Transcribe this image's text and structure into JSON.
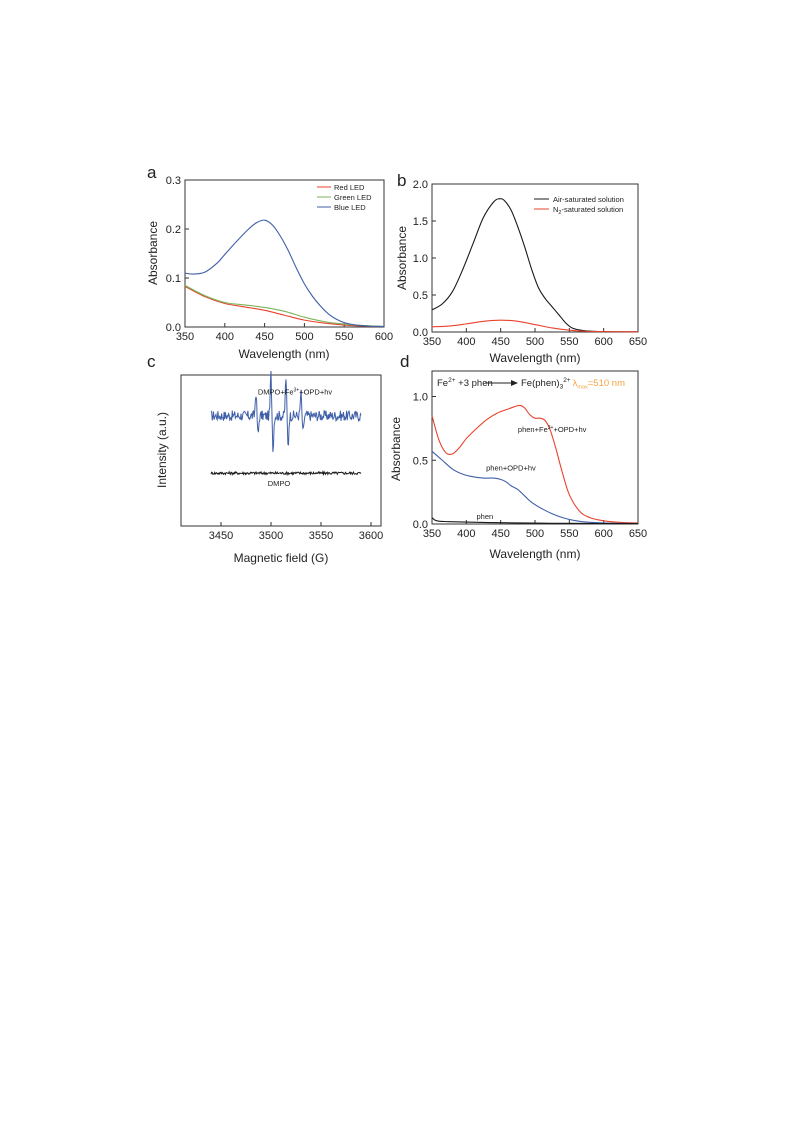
{
  "colors": {
    "red": "#e8432d",
    "green": "#7ab55c",
    "blue": "#3f5fa8",
    "black": "#1a1a1a",
    "orange": "#f2a341"
  },
  "panels": {
    "a": {
      "letter": "a"
    },
    "b": {
      "letter": "b"
    },
    "c": {
      "letter": "c"
    },
    "d": {
      "letter": "d",
      "eq_left": "Fe",
      "eq_left_sup": "2+",
      "eq_mid": " +3 phen",
      "eq_right": "Fe(phen)",
      "eq_right_sub": "3",
      "eq_right_sup": "2+",
      "eq_lambda": "λ",
      "eq_lambda_sub": "max",
      "eq_lambda_val": "=510 nm"
    }
  },
  "chart_data": [
    {
      "panel": "a",
      "type": "line",
      "xlabel": "Wavelength (nm)",
      "ylabel": "Absorbance",
      "xlim": [
        350,
        600
      ],
      "ylim": [
        0,
        0.3
      ],
      "xticks": [
        350,
        400,
        450,
        500,
        550,
        600
      ],
      "yticks": [
        0.0,
        0.1,
        0.2,
        0.3
      ],
      "xtick_labels": [
        "350",
        "400",
        "450",
        "500",
        "550",
        "600"
      ],
      "ytick_labels": [
        "0.0",
        "0.1",
        "0.2",
        "0.3"
      ],
      "legend_position": "top-right",
      "series": [
        {
          "name": "Red LED",
          "color": "#e8432d",
          "x": [
            350,
            375,
            400,
            425,
            450,
            475,
            500,
            525,
            550,
            575,
            600
          ],
          "y": [
            0.083,
            0.062,
            0.048,
            0.041,
            0.034,
            0.024,
            0.014,
            0.008,
            0.004,
            0.002,
            0.001
          ]
        },
        {
          "name": "Green LED",
          "color": "#7ab55c",
          "x": [
            350,
            375,
            400,
            425,
            450,
            475,
            500,
            525,
            550,
            575,
            600
          ],
          "y": [
            0.085,
            0.064,
            0.05,
            0.045,
            0.04,
            0.032,
            0.02,
            0.011,
            0.006,
            0.003,
            0.001
          ]
        },
        {
          "name": "Blue LED",
          "color": "#3f5fa8",
          "x": [
            350,
            360,
            375,
            390,
            400,
            415,
            430,
            440,
            450,
            460,
            470,
            480,
            490,
            500,
            510,
            520,
            530,
            540,
            550,
            565,
            580,
            600
          ],
          "y": [
            0.11,
            0.108,
            0.112,
            0.13,
            0.148,
            0.175,
            0.2,
            0.213,
            0.218,
            0.208,
            0.185,
            0.155,
            0.12,
            0.088,
            0.063,
            0.043,
            0.027,
            0.016,
            0.009,
            0.004,
            0.002,
            0.001
          ]
        }
      ]
    },
    {
      "panel": "b",
      "type": "line",
      "xlabel": "Wavelength (nm)",
      "ylabel": "Absorbance",
      "xlim": [
        350,
        650
      ],
      "ylim": [
        0,
        2.0
      ],
      "xticks": [
        350,
        400,
        450,
        500,
        550,
        600,
        650
      ],
      "yticks": [
        0.0,
        0.5,
        1.0,
        1.5,
        2.0
      ],
      "xtick_labels": [
        "350",
        "400",
        "450",
        "500",
        "550",
        "600",
        "650"
      ],
      "ytick_labels": [
        "0.0",
        "0.5",
        "1.0",
        "1.5",
        "2.0"
      ],
      "legend_position": "top-right",
      "series": [
        {
          "name": "Air-saturated solution",
          "color": "#1a1a1a",
          "x": [
            350,
            365,
            380,
            395,
            410,
            425,
            440,
            448,
            455,
            465,
            475,
            485,
            495,
            505,
            515,
            525,
            535,
            545,
            555,
            570,
            585,
            600,
            625,
            650
          ],
          "y": [
            0.3,
            0.38,
            0.55,
            0.85,
            1.2,
            1.55,
            1.76,
            1.8,
            1.78,
            1.65,
            1.42,
            1.15,
            0.85,
            0.6,
            0.45,
            0.34,
            0.23,
            0.12,
            0.05,
            0.02,
            0.01,
            0.005,
            0.003,
            0.002
          ]
        },
        {
          "name": "N",
          "name_sub": "2",
          "name_rest": "-saturated solution",
          "color": "#e8432d",
          "x": [
            350,
            375,
            400,
            425,
            450,
            475,
            500,
            525,
            550,
            575,
            600,
            650
          ],
          "y": [
            0.07,
            0.08,
            0.11,
            0.145,
            0.16,
            0.145,
            0.1,
            0.055,
            0.025,
            0.01,
            0.005,
            0.002
          ]
        }
      ]
    },
    {
      "panel": "c",
      "type": "line",
      "xlabel": "Magnetic field (G)",
      "ylabel": "Intensity (a.u.)",
      "xlim": [
        3410,
        3610
      ],
      "ylim": [
        0,
        10
      ],
      "xticks": [
        3450,
        3500,
        3550,
        3600
      ],
      "xtick_labels": [
        "3450",
        "3500",
        "3550",
        "3600"
      ],
      "annotations": [
        {
          "text": "DMPO+Fe",
          "sup": "3+",
          "rest": "+OPD+hv",
          "x": 3524,
          "y": 8.7
        },
        {
          "text": "DMPO",
          "x": 3508,
          "y": 2.65
        }
      ],
      "series": [
        {
          "name": "DMPO+Fe3+ +OPD+hv",
          "color": "#3f5fa8",
          "x_start": 3440,
          "x_end": 3590,
          "baseline": 7.3,
          "noise": 0.35,
          "peaks": [
            [
              3486,
              1.6,
              -1.3
            ],
            [
              3501,
              2.8,
              -2.2
            ],
            [
              3516,
              2.6,
              -2.1
            ],
            [
              3531,
              1.5,
              -1.2
            ]
          ]
        },
        {
          "name": "DMPO",
          "color": "#1a1a1a",
          "x_start": 3440,
          "x_end": 3590,
          "baseline": 3.5,
          "noise": 0.09
        }
      ]
    },
    {
      "panel": "d",
      "type": "line",
      "xlabel": "Wavelength (nm)",
      "ylabel": "Absorbance",
      "xlim": [
        350,
        650
      ],
      "ylim": [
        0,
        1.2
      ],
      "xticks": [
        350,
        400,
        450,
        500,
        550,
        600,
        650
      ],
      "yticks": [
        0.0,
        0.5,
        1.0
      ],
      "xtick_labels": [
        "350",
        "400",
        "450",
        "500",
        "550",
        "600",
        "650"
      ],
      "ytick_labels": [
        "0.0",
        "0.5",
        "1.0"
      ],
      "annotations": [
        {
          "text": "phen+Fe",
          "sup": "3+",
          "rest": "+OPD+hv",
          "x": 525,
          "y": 0.72
        },
        {
          "text": "phen+OPD+hv",
          "x": 465,
          "y": 0.42
        },
        {
          "text": "phen",
          "x": 427,
          "y": 0.04
        }
      ],
      "series": [
        {
          "name": "phen+Fe3+ +OPD+hv",
          "color": "#e8432d",
          "x": [
            350,
            360,
            370,
            380,
            390,
            400,
            415,
            430,
            445,
            460,
            470,
            478,
            485,
            492,
            500,
            508,
            515,
            522,
            530,
            540,
            550,
            565,
            580,
            600,
            625,
            650
          ],
          "y": [
            0.85,
            0.66,
            0.56,
            0.55,
            0.6,
            0.67,
            0.75,
            0.82,
            0.87,
            0.9,
            0.92,
            0.93,
            0.91,
            0.86,
            0.83,
            0.83,
            0.81,
            0.74,
            0.6,
            0.4,
            0.23,
            0.1,
            0.05,
            0.025,
            0.012,
            0.008
          ]
        },
        {
          "name": "phen+OPD+hv",
          "color": "#3f5fa8",
          "x": [
            350,
            365,
            380,
            395,
            410,
            425,
            440,
            450,
            458,
            465,
            475,
            485,
            495,
            510,
            525,
            540,
            555,
            575,
            600,
            625,
            650
          ],
          "y": [
            0.57,
            0.5,
            0.43,
            0.39,
            0.37,
            0.36,
            0.36,
            0.35,
            0.33,
            0.3,
            0.27,
            0.22,
            0.17,
            0.12,
            0.08,
            0.05,
            0.03,
            0.015,
            0.008,
            0.005,
            0.003
          ]
        },
        {
          "name": "phen",
          "color": "#1a1a1a",
          "x": [
            350,
            353,
            356,
            360,
            366,
            375,
            400,
            450,
            500,
            550,
            600,
            650
          ],
          "y": [
            0.05,
            0.035,
            0.027,
            0.022,
            0.02,
            0.018,
            0.015,
            0.01,
            0.007,
            0.005,
            0.004,
            0.003
          ]
        }
      ]
    }
  ]
}
